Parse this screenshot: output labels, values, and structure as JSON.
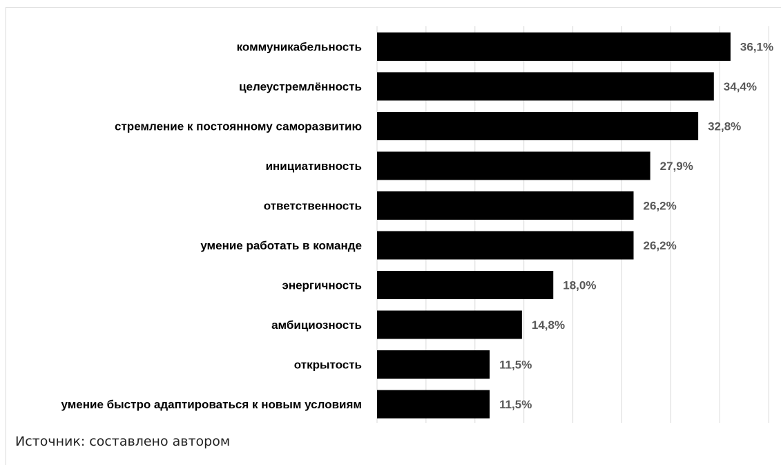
{
  "chart_data": {
    "type": "bar",
    "orientation": "horizontal",
    "categories": [
      "коммуникабельность",
      "целеустремлённость",
      "стремление к постоянному саморазвитию",
      "инициативность",
      "ответственность",
      "умение работать в команде",
      "энергичность",
      "амбициозность",
      "открытость",
      "умение быстро адаптироваться  к новым условиям"
    ],
    "values": [
      36.1,
      34.4,
      32.8,
      27.9,
      26.2,
      26.2,
      18.0,
      14.8,
      11.5,
      11.5
    ],
    "data_labels": [
      "36,1%",
      "34,4%",
      "32,8%",
      "27,9%",
      "26,2%",
      "26,2%",
      "18,0%",
      "14,8%",
      "11,5%",
      "11,5%"
    ],
    "xlim": [
      0,
      40
    ],
    "grid": true,
    "gridline_interval": 5,
    "bar_color": "#000000",
    "gridline_color": "#d9d9d9",
    "value_label_color": "#595959"
  },
  "source_note": "Источник: составлено автором"
}
